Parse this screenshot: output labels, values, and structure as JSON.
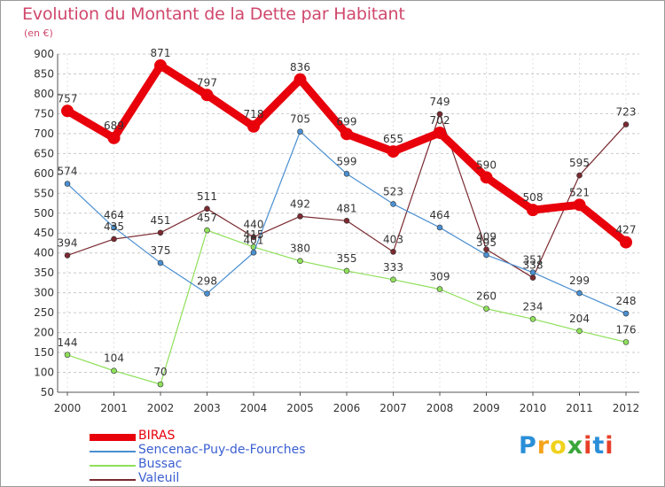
{
  "title": "Evolution du Montant de la Dette par Habitant",
  "subtitle": "(en €)",
  "logo": {
    "text": "Proxiti",
    "letters": [
      "P",
      "r",
      "o",
      "x",
      "i",
      "t",
      "i"
    ],
    "colors": [
      "#2a8fd8",
      "#f5a31c",
      "#f0d21c",
      "#3aa63a",
      "#e8402a",
      "#2a8fd8",
      "#e8402a"
    ]
  },
  "chart_data": {
    "type": "line",
    "categories": [
      "2000",
      "2001",
      "2002",
      "2003",
      "2004",
      "2005",
      "2006",
      "2007",
      "2008",
      "2009",
      "2010",
      "2011",
      "2012"
    ],
    "ylim": [
      50,
      900
    ],
    "yticks": [
      50,
      100,
      150,
      200,
      250,
      300,
      350,
      400,
      450,
      500,
      550,
      600,
      650,
      700,
      750,
      800,
      850,
      900
    ],
    "grid": "horizontal dashed",
    "legend_position": "bottom-left",
    "series": [
      {
        "name": "BIRAS",
        "color": "#e8000b",
        "values": [
          757,
          689,
          871,
          797,
          718,
          836,
          699,
          655,
          702,
          590,
          508,
          521,
          427
        ]
      },
      {
        "name": "Sencenac-Puy-de-Fourches",
        "color": "#4a8fd1",
        "values": [
          574,
          464,
          375,
          298,
          401,
          705,
          599,
          523,
          464,
          395,
          351,
          299,
          248
        ]
      },
      {
        "name": "Bussac",
        "color": "#8fe05a",
        "values": [
          144,
          104,
          70,
          457,
          415,
          380,
          355,
          333,
          309,
          260,
          234,
          204,
          176
        ]
      },
      {
        "name": "Valeuil",
        "color": "#7a2a30",
        "values": [
          394,
          435,
          451,
          511,
          440,
          492,
          481,
          403,
          749,
          409,
          338,
          595,
          723
        ]
      }
    ]
  }
}
